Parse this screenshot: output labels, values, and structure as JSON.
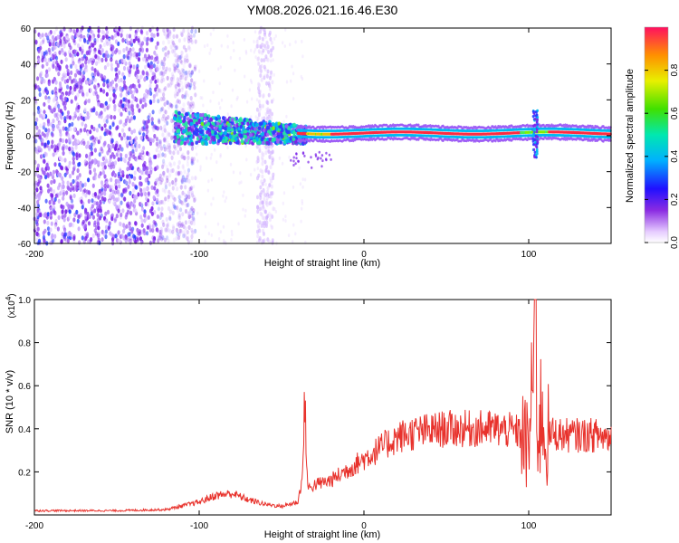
{
  "figure": {
    "title": "YM08.2026.021.16.46.E30"
  },
  "chart_data": [
    {
      "type": "heatmap",
      "title": "YM08.2026.021.16.46.E30",
      "xlabel": "Height of straight line (km)",
      "ylabel": "Frequency (Hz)",
      "xlim": [
        -200,
        150
      ],
      "ylim": [
        -60,
        60
      ],
      "x_ticks": [
        -200,
        -100,
        0,
        100
      ],
      "x_tick_labels": [
        "-200",
        "-100",
        "0",
        "100"
      ],
      "y_ticks": [
        -60,
        -40,
        -20,
        0,
        20,
        40,
        60
      ],
      "y_tick_labels": [
        "-60",
        "-40",
        "-20",
        "0",
        "20",
        "40",
        "60"
      ],
      "grid": false,
      "colormap": "rainbow",
      "colorbar": {
        "label": "Normalized spectral amplitude",
        "range": [
          0,
          1
        ],
        "ticks": [
          0.0,
          0.2,
          0.4,
          0.6,
          0.8
        ],
        "tick_labels": [
          "0.0",
          "0.2",
          "0.4",
          "0.6",
          "0.8"
        ]
      },
      "features": {
        "broadband_noise_x_range": [
          -200,
          -110
        ],
        "noise_stripe_x_range": [
          -65,
          -55
        ],
        "tone_band_center_hz": 1.5,
        "tone_band_x_range": [
          -115,
          150
        ],
        "burst_x": 104
      }
    },
    {
      "type": "line",
      "xlabel": "Height of straight line (km)",
      "ylabel": "SNR (10 * v/v)",
      "y_multiplier_label": "(x10^4)",
      "xlim": [
        -200,
        150
      ],
      "ylim": [
        0,
        1.0
      ],
      "x_ticks": [
        -200,
        -100,
        0,
        100
      ],
      "x_tick_labels": [
        "-200",
        "-100",
        "0",
        "100"
      ],
      "y_ticks": [
        0.2,
        0.4,
        0.6,
        0.8,
        1.0
      ],
      "y_tick_labels": [
        "0.2",
        "0.4",
        "0.6",
        "0.8",
        "1.0"
      ],
      "grid": false,
      "series": [
        {
          "color": "#e8322c",
          "x": [
            -200,
            -150,
            -120,
            -100,
            -90,
            -80,
            -70,
            -60,
            -50,
            -40,
            -37,
            -36,
            -35,
            -34,
            -30,
            -20,
            -10,
            0,
            10,
            20,
            30,
            40,
            50,
            60,
            70,
            80,
            90,
            95,
            100,
            102,
            104,
            106,
            108,
            110,
            115,
            120,
            130,
            140,
            150
          ],
          "y": [
            0.02,
            0.02,
            0.025,
            0.06,
            0.09,
            0.1,
            0.07,
            0.05,
            0.04,
            0.06,
            0.2,
            0.58,
            0.3,
            0.12,
            0.14,
            0.16,
            0.21,
            0.26,
            0.31,
            0.36,
            0.38,
            0.39,
            0.4,
            0.4,
            0.4,
            0.4,
            0.39,
            0.38,
            0.3,
            0.6,
            1.0,
            0.3,
            0.55,
            0.35,
            0.38,
            0.37,
            0.37,
            0.37,
            0.36
          ]
        }
      ]
    }
  ]
}
